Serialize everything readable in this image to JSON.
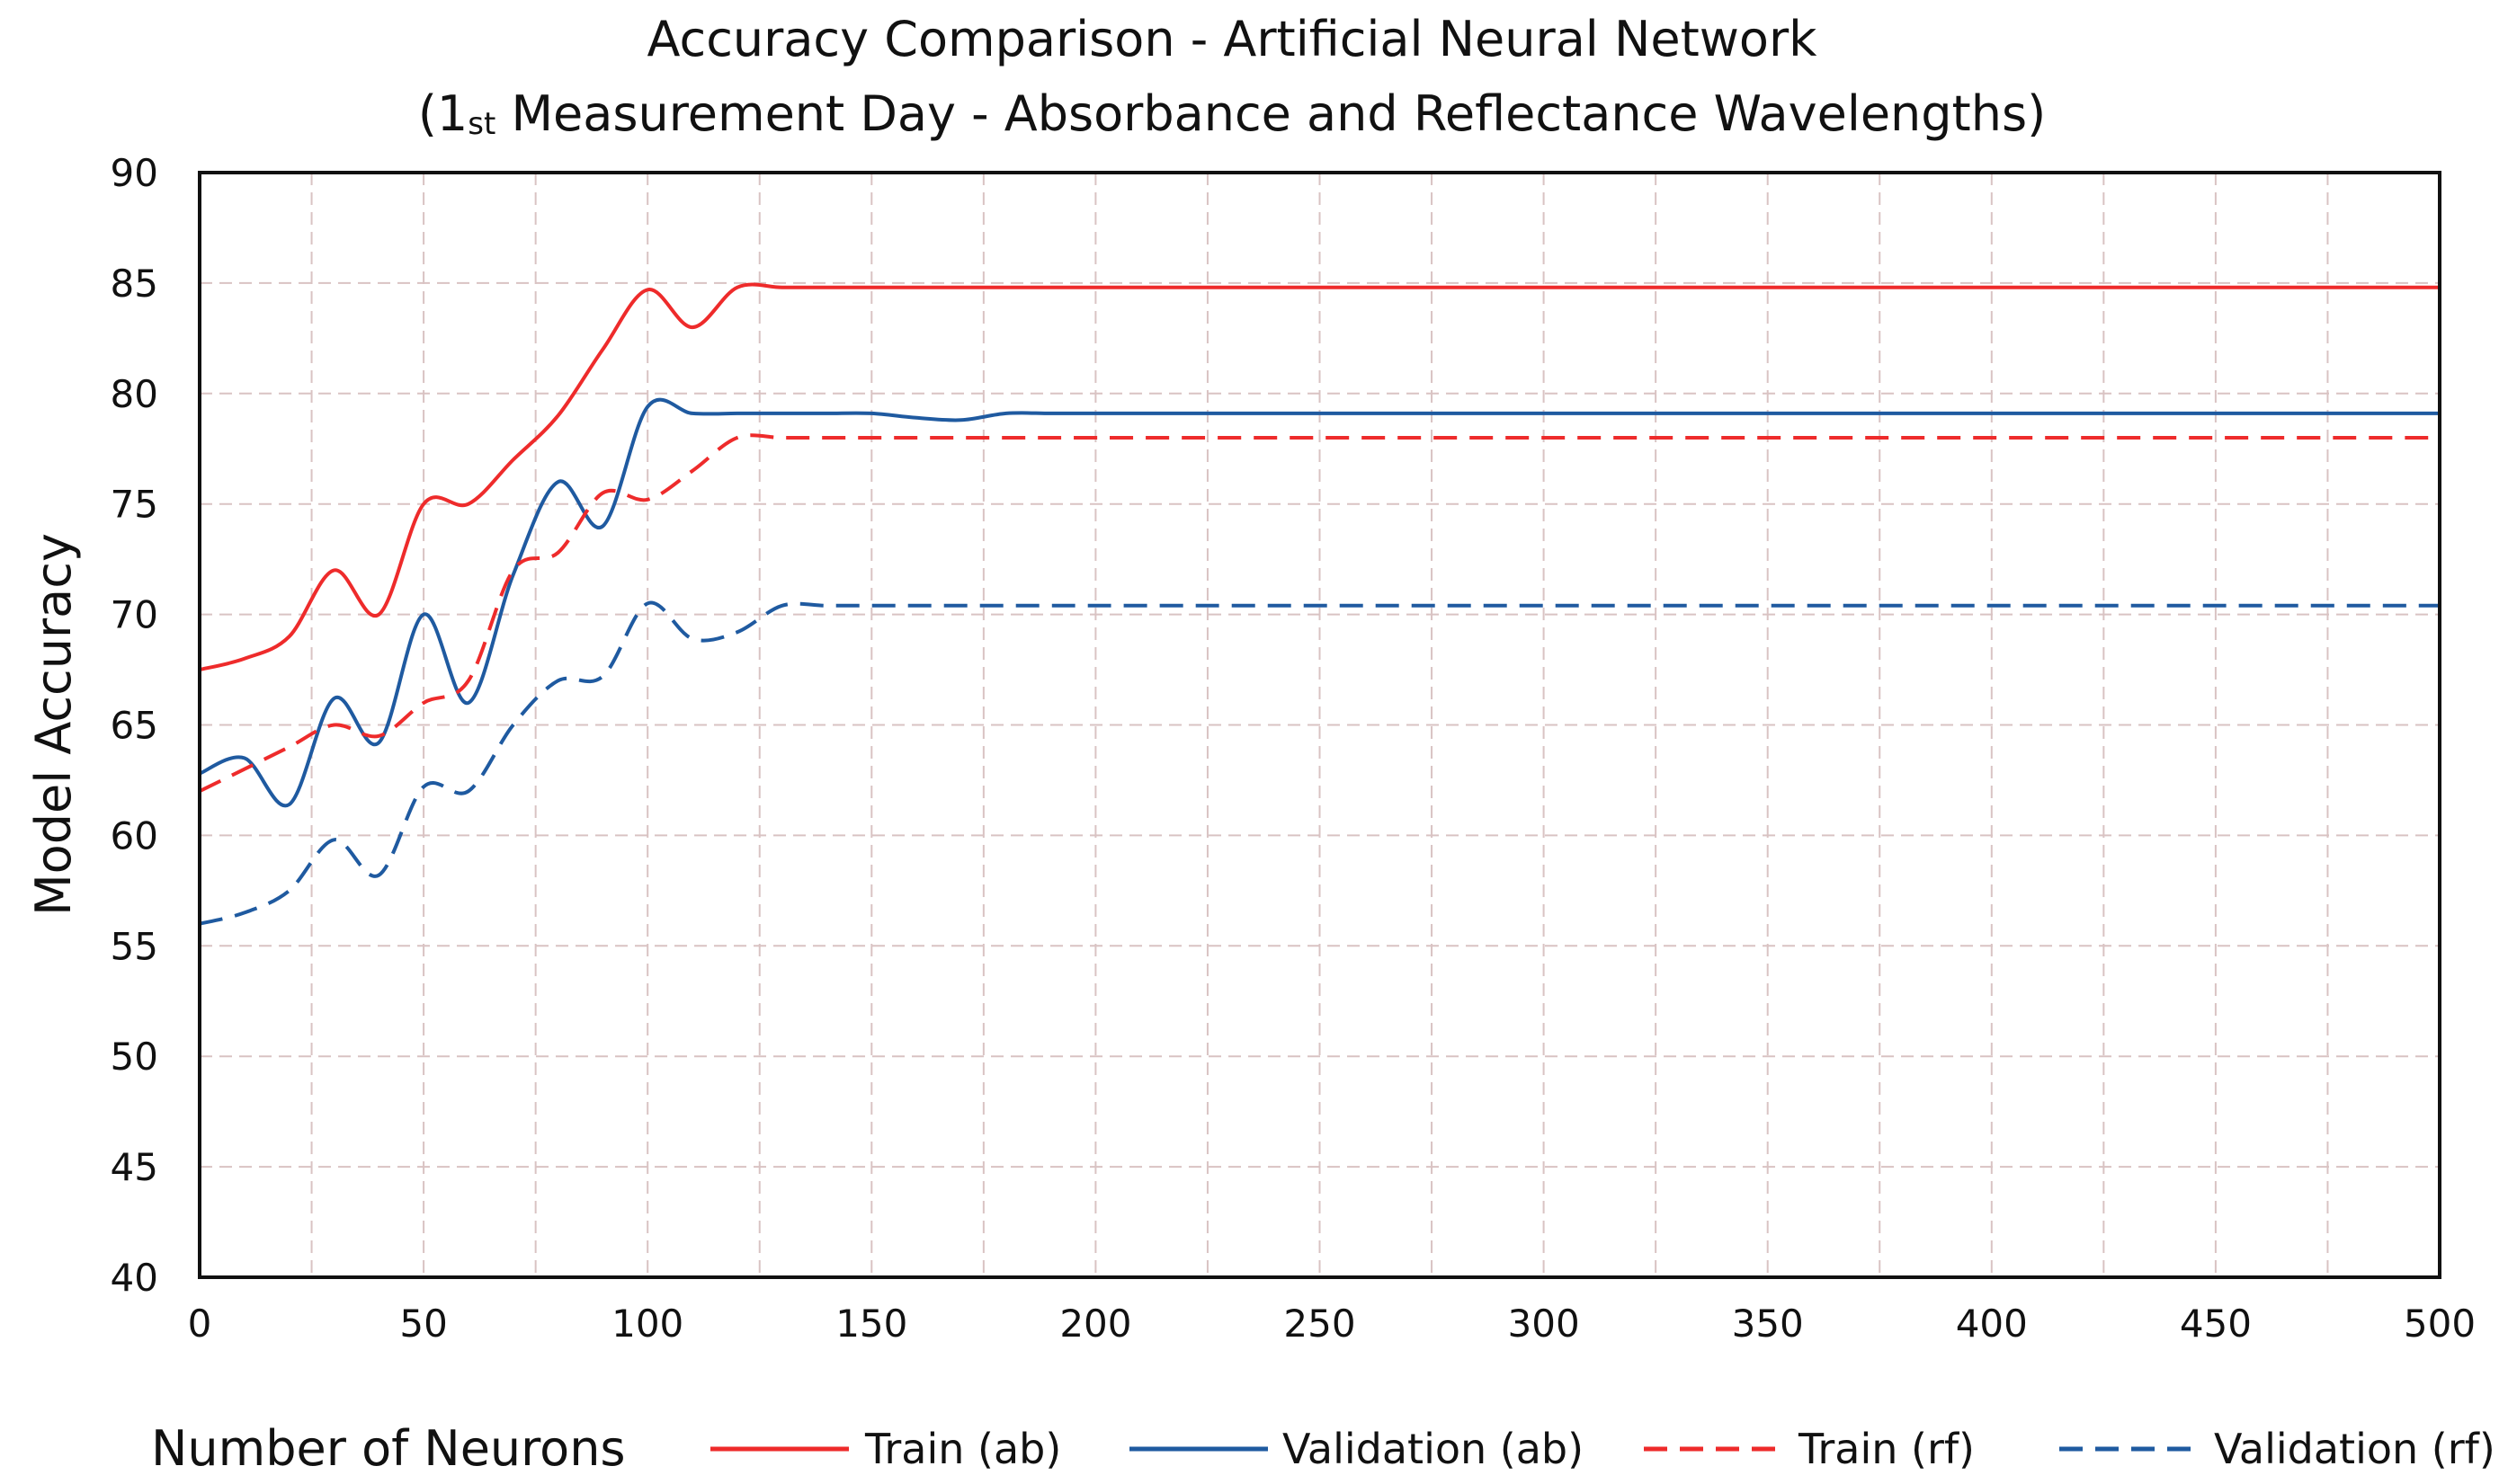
{
  "chart_data": {
    "type": "line",
    "title_line1": "Accuracy Comparison  - Artificial Neural Network",
    "title_line2_open": "(1",
    "title_line2_sup": "st",
    "title_line2_rest": " Measurement Day   - Absorbance and Reflectance Wavelengths)",
    "xlabel": "Number of Neurons",
    "ylabel": "Model Accuracy",
    "xlim": [
      0,
      500
    ],
    "ylim": [
      40,
      90
    ],
    "x_ticks": [
      0,
      50,
      100,
      150,
      200,
      250,
      300,
      350,
      400,
      450,
      500
    ],
    "y_ticks": [
      40,
      45,
      50,
      55,
      60,
      65,
      70,
      75,
      80,
      85,
      90
    ],
    "x_tick_labels": [
      "0",
      "50",
      "100",
      "150",
      "200",
      "250",
      "300",
      "350",
      "400",
      "450",
      "500"
    ],
    "y_tick_labels": [
      "40",
      "45",
      "50",
      "55",
      "60",
      "65",
      "70",
      "75",
      "80",
      "85",
      "90"
    ],
    "grid": true,
    "legend_position": "bottom",
    "x": [
      0,
      10,
      20,
      30,
      40,
      50,
      60,
      70,
      80,
      90,
      100,
      110,
      120,
      130,
      140,
      150,
      160,
      170,
      180,
      190,
      200,
      250,
      300,
      350,
      400,
      450,
      500
    ],
    "series": [
      {
        "name": "Train (ab)",
        "color": "#ee2b2b",
        "dashed": false,
        "values": [
          67.5,
          68.0,
          69.0,
          72.0,
          70.0,
          75.0,
          75.0,
          77.0,
          79.0,
          82.0,
          84.7,
          83.0,
          84.8,
          84.8,
          84.8,
          84.8,
          84.8,
          84.8,
          84.8,
          84.8,
          84.8,
          84.8,
          84.8,
          84.8,
          84.8,
          84.8,
          84.8
        ]
      },
      {
        "name": "Validation (ab)",
        "color": "#1f5aa0",
        "dashed": false,
        "values": [
          62.8,
          63.5,
          61.4,
          66.2,
          64.2,
          70.0,
          66.0,
          71.8,
          76.0,
          74.0,
          79.4,
          79.1,
          79.1,
          79.1,
          79.1,
          79.1,
          78.9,
          78.8,
          79.1,
          79.1,
          79.1,
          79.1,
          79.1,
          79.1,
          79.1,
          79.1,
          79.1
        ]
      },
      {
        "name": "Train (rf)",
        "color": "#ee2b2b",
        "dashed": true,
        "values": [
          62.0,
          63.0,
          64.0,
          65.0,
          64.5,
          66.0,
          67.0,
          72.0,
          72.8,
          75.5,
          75.2,
          76.5,
          78.0,
          78.0,
          78.0,
          78.0,
          78.0,
          78.0,
          78.0,
          78.0,
          78.0,
          78.0,
          78.0,
          78.0,
          78.0,
          78.0,
          78.0
        ]
      },
      {
        "name": "Validation (rf)",
        "color": "#1f5aa0",
        "dashed": true,
        "values": [
          56.0,
          56.5,
          57.5,
          59.8,
          58.2,
          62.2,
          62.0,
          65.0,
          67.0,
          67.2,
          70.5,
          68.9,
          69.2,
          70.4,
          70.4,
          70.4,
          70.4,
          70.4,
          70.4,
          70.4,
          70.4,
          70.4,
          70.4,
          70.4,
          70.4,
          70.4,
          70.4
        ]
      }
    ]
  }
}
